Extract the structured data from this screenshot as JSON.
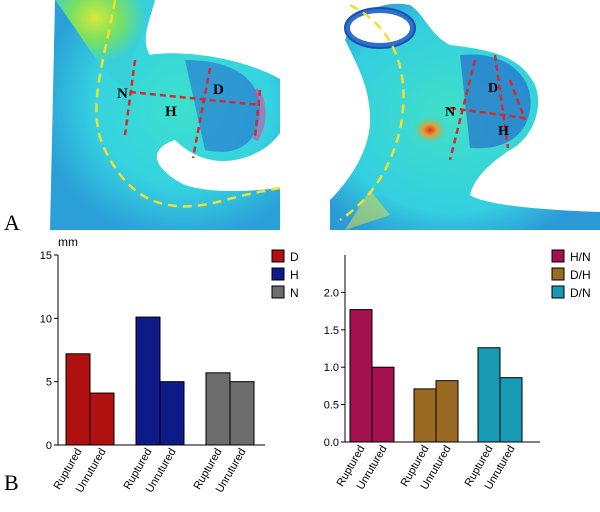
{
  "panels": {
    "a": "A",
    "b": "B"
  },
  "renders": {
    "left_labels": {
      "n": "N",
      "h": "H",
      "d": "D"
    },
    "right_labels": {
      "n": "N",
      "h": "H",
      "d": "D"
    }
  },
  "colors": {
    "measure_line": "#d42a2a",
    "vessel_line": "#f0e030",
    "D": "#b01010",
    "H": "#101b8a",
    "N": "#6d6d6d",
    "H/N": "#a5104f",
    "D/H": "#9a6a22",
    "D/N": "#179bb5"
  },
  "chart_data": [
    {
      "type": "bar",
      "ylabel": "mm",
      "ylim": [
        0,
        15
      ],
      "yticks": [
        0,
        5,
        10,
        15
      ],
      "categories": [
        "Ruptured",
        "Unrutured",
        "Ruptured",
        "Unrutured",
        "Ruptured",
        "Unrutured"
      ],
      "groups": [
        {
          "name": "D",
          "values": [
            7.2,
            4.1
          ]
        },
        {
          "name": "H",
          "values": [
            10.1,
            5.0
          ]
        },
        {
          "name": "N",
          "values": [
            5.7,
            5.0
          ]
        }
      ],
      "legend": [
        "D",
        "H",
        "N"
      ],
      "legend_position": "right"
    },
    {
      "type": "bar",
      "ylabel": "",
      "ylim": [
        0,
        2.5
      ],
      "yticks": [
        0.0,
        0.5,
        1.0,
        1.5,
        2.0
      ],
      "categories": [
        "Ruptured",
        "Unrutured",
        "Ruptured",
        "Unrutured",
        "Ruptured",
        "Unrutured"
      ],
      "groups": [
        {
          "name": "H/N",
          "values": [
            1.77,
            1.0
          ]
        },
        {
          "name": "D/H",
          "values": [
            0.71,
            0.82
          ]
        },
        {
          "name": "D/N",
          "values": [
            1.26,
            0.86
          ]
        }
      ],
      "legend": [
        "H/N",
        "D/H",
        "D/N"
      ],
      "legend_position": "top-left"
    }
  ]
}
